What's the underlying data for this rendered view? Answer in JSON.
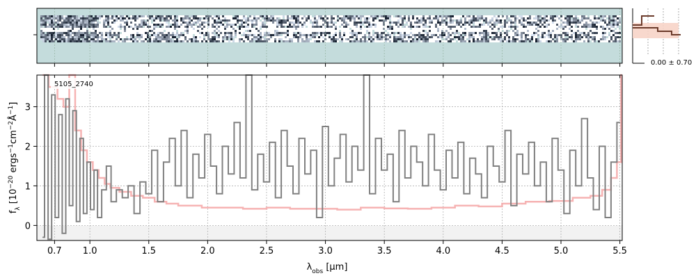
{
  "chart_data": {
    "type": "line",
    "label": "5105_2740",
    "xlabel": "$\\lambda_\\mathrm{obs}$ [$\\mu$m]",
    "xlabel_display": "λobs [μm]",
    "ylabel": "$f_\\lambda$ [10$^{-20}$ ergs$^{-1}$cm$^{-2}$Å$^{-1}$]",
    "ylabel_display": "fλ [10⁻²⁰ ergs⁻¹cm⁻²Å⁻¹]",
    "xlim": [
      0.55,
      5.52
    ],
    "ylim": [
      -0.38,
      3.8
    ],
    "x_ticks": [
      {
        "label": "0.7",
        "value": 0.7
      },
      {
        "label": "1.0",
        "value": 1.0
      },
      {
        "label": "1.5",
        "value": 1.5
      },
      {
        "label": "2.0",
        "value": 2.0
      },
      {
        "label": "2.5",
        "value": 2.5
      },
      {
        "label": "3.0",
        "value": 3.0
      },
      {
        "label": "3.5",
        "value": 3.5
      },
      {
        "label": "4.0",
        "value": 4.0
      },
      {
        "label": "4.5",
        "value": 4.5
      },
      {
        "label": "5.0",
        "value": 5.0
      },
      {
        "label": "5.5",
        "value": 5.5
      }
    ],
    "y_ticks": [
      0,
      1,
      2,
      3
    ],
    "grid": true,
    "series": [
      {
        "role": "flux",
        "color": "#808080",
        "x": [
          0.6,
          0.63,
          0.66,
          0.69,
          0.72,
          0.75,
          0.78,
          0.81,
          0.84,
          0.87,
          0.9,
          0.93,
          0.96,
          0.99,
          1.02,
          1.05,
          1.08,
          1.12,
          1.16,
          1.2,
          1.25,
          1.3,
          1.35,
          1.4,
          1.45,
          1.5,
          1.55,
          1.6,
          1.65,
          1.7,
          1.75,
          1.8,
          1.85,
          1.9,
          1.95,
          2.0,
          2.05,
          2.1,
          2.15,
          2.2,
          2.25,
          2.3,
          2.35,
          2.4,
          2.45,
          2.5,
          2.55,
          2.6,
          2.65,
          2.7,
          2.75,
          2.8,
          2.85,
          2.9,
          2.95,
          3.0,
          3.05,
          3.1,
          3.15,
          3.2,
          3.25,
          3.3,
          3.35,
          3.4,
          3.45,
          3.5,
          3.55,
          3.6,
          3.65,
          3.7,
          3.75,
          3.8,
          3.85,
          3.9,
          3.95,
          4.0,
          4.05,
          4.1,
          4.15,
          4.2,
          4.25,
          4.3,
          4.35,
          4.4,
          4.45,
          4.5,
          4.55,
          4.6,
          4.65,
          4.7,
          4.75,
          4.8,
          4.85,
          4.9,
          4.95,
          5.0,
          5.05,
          5.1,
          5.15,
          5.2,
          5.25,
          5.3,
          5.35,
          5.4,
          5.45,
          5.5
        ],
        "y": [
          -0.3,
          3.8,
          -0.35,
          3.3,
          0.2,
          2.8,
          -0.2,
          3.2,
          0.5,
          2.9,
          0.1,
          2.2,
          0.3,
          1.6,
          0.4,
          1.4,
          0.2,
          0.9,
          1.5,
          0.6,
          0.9,
          0.7,
          1.0,
          0.3,
          1.1,
          0.8,
          1.9,
          0.6,
          1.6,
          2.2,
          1.0,
          2.4,
          0.7,
          1.8,
          1.2,
          2.3,
          1.5,
          0.8,
          2.0,
          1.3,
          2.6,
          1.2,
          3.8,
          0.9,
          1.8,
          1.1,
          2.1,
          0.7,
          2.4,
          1.5,
          0.8,
          2.2,
          1.3,
          1.9,
          0.2,
          2.5,
          1.0,
          1.7,
          2.3,
          1.1,
          2.0,
          1.4,
          3.8,
          0.8,
          2.2,
          1.4,
          1.8,
          0.6,
          2.4,
          1.2,
          2.0,
          1.6,
          1.0,
          2.3,
          1.4,
          0.9,
          1.9,
          1.2,
          2.1,
          0.8,
          1.7,
          1.3,
          0.7,
          2.0,
          1.5,
          1.1,
          2.4,
          0.5,
          1.8,
          1.3,
          2.1,
          1.0,
          1.6,
          0.6,
          2.2,
          1.4,
          0.3,
          1.9,
          1.0,
          2.7,
          1.2,
          0.4,
          2.0,
          0.2,
          1.6,
          2.6
        ]
      },
      {
        "role": "error",
        "color": "#f4a6a6",
        "x": [
          0.6,
          0.7,
          0.75,
          0.8,
          0.85,
          0.9,
          0.95,
          1.0,
          1.05,
          1.1,
          1.15,
          1.2,
          1.3,
          1.4,
          1.5,
          1.6,
          1.7,
          1.8,
          1.9,
          2.0,
          2.2,
          2.4,
          2.6,
          2.8,
          3.0,
          3.2,
          3.4,
          3.6,
          3.8,
          4.0,
          4.2,
          4.4,
          4.6,
          4.8,
          5.0,
          5.2,
          5.3,
          5.4,
          5.45,
          5.5,
          5.52
        ],
        "y": [
          3.8,
          3.5,
          3.2,
          3.0,
          3.8,
          2.4,
          1.9,
          1.6,
          1.4,
          1.2,
          1.05,
          0.95,
          0.85,
          0.75,
          0.7,
          0.6,
          0.55,
          0.5,
          0.5,
          0.45,
          0.45,
          0.42,
          0.45,
          0.42,
          0.42,
          0.4,
          0.45,
          0.43,
          0.42,
          0.45,
          0.5,
          0.48,
          0.55,
          0.6,
          0.62,
          0.7,
          0.75,
          0.9,
          1.2,
          1.6,
          3.8
        ]
      }
    ]
  },
  "inset": {
    "label": "0.00 ± 0.70"
  },
  "colors": {
    "flux": "#808080",
    "error": "#f4a6a6",
    "image_bg": "#c4dcdc",
    "hist": "#f7d4c8",
    "hist_line": "#6b3a2a"
  }
}
